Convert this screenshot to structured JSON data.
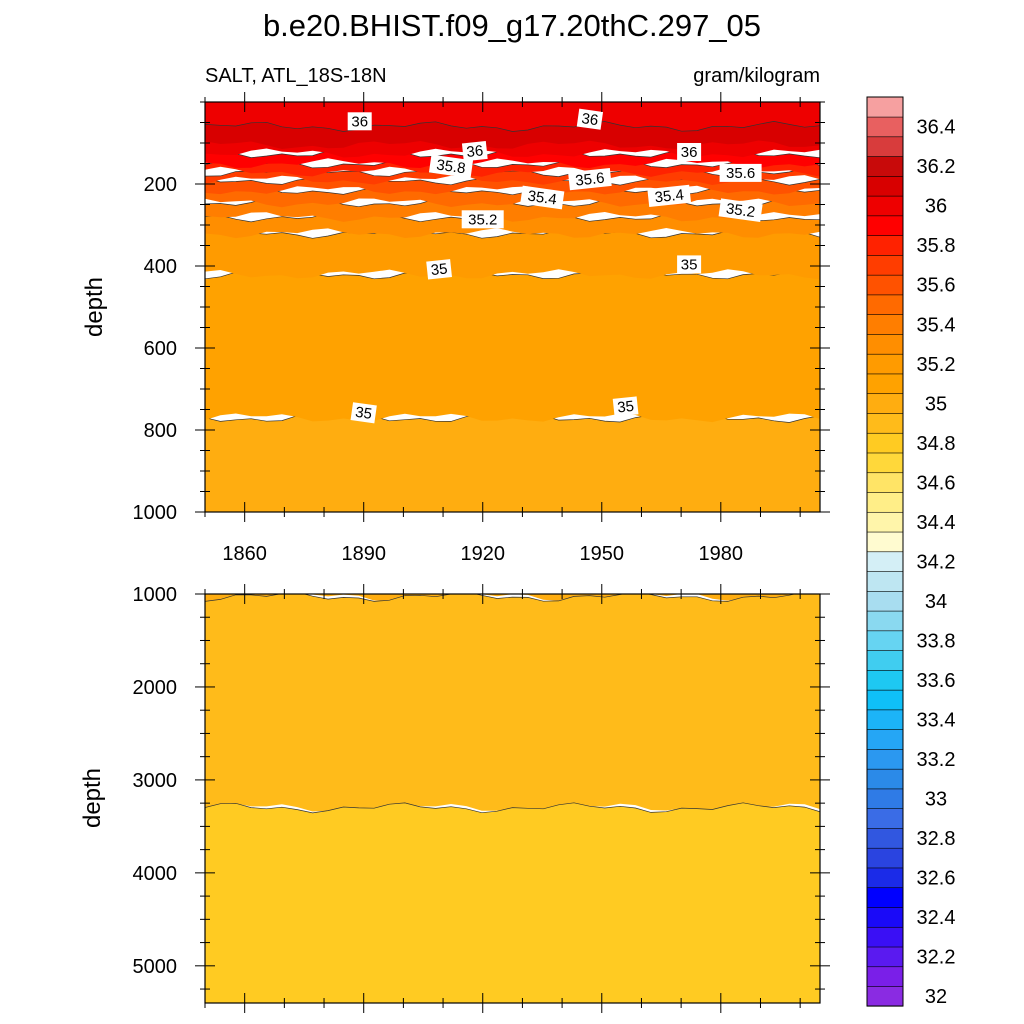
{
  "title": "b.e20.BHIST.f09_g17.20thC.297_05",
  "subtitle_left": "SALT, ATL_18S-18N",
  "subtitle_right": "gram/kilogram",
  "chart_data": [
    {
      "type": "heatmap",
      "panel": "upper",
      "ylabel": "depth",
      "xlim": [
        1850,
        2005
      ],
      "ylim": [
        0,
        1000
      ],
      "y_inverted": true,
      "x_ticks": [
        1860,
        1890,
        1920,
        1950,
        1980
      ],
      "y_ticks": [
        200,
        400,
        600,
        800,
        1000
      ],
      "bands": [
        {
          "z_from": 35.0,
          "z_to": 35.1,
          "depth_top": 770,
          "depth_bottom": 1000
        },
        {
          "z_from": 35.1,
          "z_to": 35.2,
          "depth_top": 420,
          "depth_bottom": 770
        },
        {
          "z_from": 35.2,
          "z_to": 35.3,
          "depth_top": 320,
          "depth_bottom": 420
        },
        {
          "z_from": 35.3,
          "z_to": 35.4,
          "depth_top": 280,
          "depth_bottom": 320
        },
        {
          "z_from": 35.4,
          "z_to": 35.5,
          "depth_top": 245,
          "depth_bottom": 280
        },
        {
          "z_from": 35.5,
          "z_to": 35.6,
          "depth_top": 215,
          "depth_bottom": 245
        },
        {
          "z_from": 35.6,
          "z_to": 35.7,
          "depth_top": 190,
          "depth_bottom": 215
        },
        {
          "z_from": 35.7,
          "z_to": 35.8,
          "depth_top": 170,
          "depth_bottom": 190
        },
        {
          "z_from": 35.8,
          "z_to": 35.9,
          "depth_top": 150,
          "depth_bottom": 170
        },
        {
          "z_from": 35.9,
          "z_to": 36.0,
          "depth_top": 125,
          "depth_bottom": 150
        },
        {
          "z_from": 36.0,
          "z_to": 36.1,
          "depth_top": 0,
          "depth_bottom": 125
        },
        {
          "z_from": 36.1,
          "z_to": 36.2,
          "depth_top": 60,
          "depth_bottom": 105
        }
      ],
      "contour_labels": [
        {
          "text": "36",
          "x": 1889,
          "depth": 47
        },
        {
          "text": "36",
          "x": 1947,
          "depth": 42
        },
        {
          "text": "36",
          "x": 1918,
          "depth": 120
        },
        {
          "text": "36",
          "x": 1972,
          "depth": 122
        },
        {
          "text": "35.8",
          "x": 1912,
          "depth": 157
        },
        {
          "text": "35.6",
          "x": 1947,
          "depth": 188
        },
        {
          "text": "35.6",
          "x": 1985,
          "depth": 173
        },
        {
          "text": "35.4",
          "x": 1935,
          "depth": 233
        },
        {
          "text": "35.4",
          "x": 1967,
          "depth": 229
        },
        {
          "text": "35.2",
          "x": 1920,
          "depth": 286
        },
        {
          "text": "35.2",
          "x": 1985,
          "depth": 264
        },
        {
          "text": "35",
          "x": 1909,
          "depth": 408
        },
        {
          "text": "35",
          "x": 1972,
          "depth": 396
        },
        {
          "text": "35",
          "x": 1890,
          "depth": 758
        },
        {
          "text": "35",
          "x": 1956,
          "depth": 743
        }
      ]
    },
    {
      "type": "heatmap",
      "panel": "lower",
      "ylabel": "depth",
      "xlim": [
        1850,
        2005
      ],
      "ylim": [
        1000,
        5400
      ],
      "y_inverted": true,
      "y_ticks": [
        1000,
        2000,
        3000,
        4000,
        5000
      ],
      "bands": [
        {
          "z_from": 35.0,
          "z_to": 35.1,
          "depth_top": 1000,
          "depth_bottom": 1030
        },
        {
          "z_from": 34.9,
          "z_to": 35.0,
          "depth_top": 1030,
          "depth_bottom": 3300
        },
        {
          "z_from": 34.8,
          "z_to": 34.9,
          "depth_top": 3300,
          "depth_bottom": 5400
        }
      ],
      "contour_labels": []
    }
  ],
  "colorbar": {
    "levels_min": 32.0,
    "levels_max": 36.6,
    "step": 0.1,
    "labels": [
      "36.4",
      "36.2",
      "36",
      "35.8",
      "35.6",
      "35.4",
      "35.2",
      "35",
      "34.8",
      "34.6",
      "34.4",
      "34.2",
      "34",
      "33.8",
      "33.6",
      "33.4",
      "33.2",
      "33",
      "32.8",
      "32.6",
      "32.4",
      "32.2",
      "32"
    ],
    "label_values": [
      36.4,
      36.2,
      36.0,
      35.8,
      35.6,
      35.4,
      35.2,
      35.0,
      34.8,
      34.6,
      34.4,
      34.2,
      34.0,
      33.8,
      33.6,
      33.4,
      33.2,
      33.0,
      32.8,
      32.6,
      32.4,
      32.2,
      32.0
    ],
    "colors_bottom_to_top": [
      "#8a2be2",
      "#7a1fe8",
      "#5a1af0",
      "#3a0ff5",
      "#1a0af8",
      "#0000ff",
      "#1b2be8",
      "#2a44e0",
      "#3157e0",
      "#3a6ce6",
      "#2f7be6",
      "#2b8ae8",
      "#2b98f0",
      "#25a6f5",
      "#1cb4f8",
      "#0fc0f8",
      "#1ec8f2",
      "#40cdf0",
      "#66d4f2",
      "#8ad9f0",
      "#a8ddf0",
      "#bee6f2",
      "#d4eff6",
      "#fffbd0",
      "#fff5aa",
      "#ffee88",
      "#ffe466",
      "#ffd83a",
      "#ffcb22",
      "#ffbb1a",
      "#ffad10",
      "#ffa200",
      "#ff9b00",
      "#ff8e00",
      "#ff7e00",
      "#ff6a00",
      "#ff5200",
      "#ff3d00",
      "#ff2200",
      "#ff0000",
      "#ee0000",
      "#d80000",
      "#c80a0a",
      "#d83c3c",
      "#e86060",
      "#f6a0a0"
    ]
  }
}
